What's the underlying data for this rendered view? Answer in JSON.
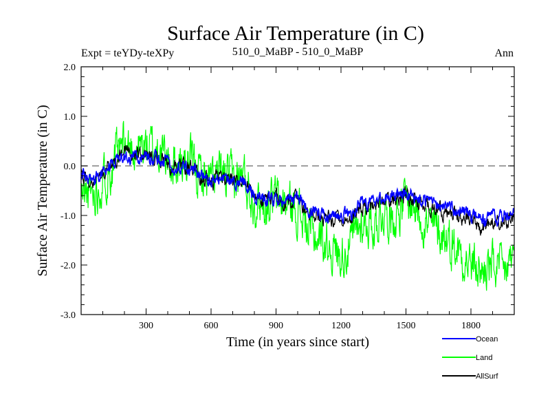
{
  "chart_data": {
    "type": "line",
    "title": "Surface Air Temperature (in C)",
    "subtitle_left": "Expt = teYDy-teXPy",
    "subtitle_center": "510_0_MaBP - 510_0_MaBP",
    "subtitle_right": "Ann",
    "xlabel": "Time (in years since start)",
    "ylabel": "Surface Air Temperature (in C)",
    "xlim": [
      0,
      2000
    ],
    "ylim": [
      -3.0,
      2.0
    ],
    "x_ticks": [
      300,
      600,
      900,
      1200,
      1500,
      1800
    ],
    "x_tick_labels": [
      "300",
      "600",
      "900",
      "1200",
      "1500",
      "1800"
    ],
    "y_ticks": [
      -3.0,
      -2.0,
      -1.0,
      0.0,
      1.0,
      2.0
    ],
    "y_tick_labels": [
      "-3.0",
      "-2.0",
      "-1.0",
      "0.0",
      "1.0",
      "2.0"
    ],
    "reference_line": {
      "y": 0.0,
      "style": "dashed",
      "color": "#808080"
    },
    "series": [
      {
        "name": "Land",
        "color": "#00ff00",
        "x": [
          0,
          50,
          100,
          150,
          200,
          250,
          300,
          350,
          400,
          450,
          500,
          550,
          600,
          650,
          700,
          750,
          800,
          850,
          900,
          950,
          1000,
          1050,
          1100,
          1150,
          1200,
          1250,
          1300,
          1350,
          1400,
          1450,
          1500,
          1550,
          1600,
          1650,
          1700,
          1750,
          1800,
          1850,
          1900,
          1950,
          2000
        ],
        "values": [
          -0.6,
          -0.55,
          -0.3,
          0.1,
          0.4,
          0.35,
          0.4,
          0.35,
          0.1,
          0.0,
          0.05,
          -0.15,
          -0.3,
          -0.2,
          -0.3,
          -0.2,
          -0.7,
          -0.75,
          -0.65,
          -0.8,
          -0.85,
          -1.35,
          -1.45,
          -1.6,
          -1.8,
          -1.55,
          -1.1,
          -1.2,
          -0.9,
          -1.0,
          -0.7,
          -0.85,
          -1.2,
          -1.3,
          -1.5,
          -1.7,
          -2.0,
          -2.15,
          -2.0,
          -2.2,
          -1.8
        ],
        "noise": 0.38
      },
      {
        "name": "AllSurf",
        "color": "#000000",
        "x": [
          0,
          50,
          100,
          150,
          200,
          250,
          300,
          350,
          400,
          450,
          500,
          550,
          600,
          650,
          700,
          750,
          800,
          850,
          900,
          950,
          1000,
          1050,
          1100,
          1150,
          1200,
          1250,
          1300,
          1350,
          1400,
          1450,
          1500,
          1550,
          1600,
          1650,
          1700,
          1750,
          1800,
          1850,
          1900,
          1950,
          2000
        ],
        "values": [
          -0.2,
          -0.35,
          -0.2,
          0.1,
          0.3,
          0.2,
          0.25,
          0.15,
          0.05,
          -0.05,
          -0.05,
          -0.2,
          -0.3,
          -0.25,
          -0.35,
          -0.3,
          -0.65,
          -0.7,
          -0.65,
          -0.8,
          -0.65,
          -1.0,
          -1.05,
          -1.1,
          -1.1,
          -1.05,
          -0.85,
          -0.8,
          -0.7,
          -0.65,
          -0.6,
          -0.75,
          -0.8,
          -0.9,
          -0.95,
          -1.0,
          -1.15,
          -1.25,
          -1.15,
          -1.2,
          -1.0
        ],
        "noise": 0.13
      },
      {
        "name": "Ocean",
        "color": "#0000ff",
        "x": [
          0,
          50,
          100,
          150,
          200,
          250,
          300,
          350,
          400,
          450,
          500,
          550,
          600,
          650,
          700,
          750,
          800,
          850,
          900,
          950,
          1000,
          1050,
          1100,
          1150,
          1200,
          1250,
          1300,
          1350,
          1400,
          1450,
          1500,
          1550,
          1600,
          1650,
          1700,
          1750,
          1800,
          1850,
          1900,
          1950,
          2000
        ],
        "values": [
          -0.15,
          -0.3,
          -0.15,
          0.1,
          0.25,
          0.15,
          0.2,
          0.15,
          0.05,
          -0.05,
          -0.05,
          -0.2,
          -0.3,
          -0.25,
          -0.35,
          -0.3,
          -0.6,
          -0.7,
          -0.65,
          -0.75,
          -0.6,
          -0.9,
          -0.95,
          -1.0,
          -1.0,
          -0.95,
          -0.75,
          -0.7,
          -0.65,
          -0.6,
          -0.55,
          -0.7,
          -0.75,
          -0.8,
          -0.85,
          -0.9,
          -1.0,
          -1.1,
          -1.05,
          -1.05,
          -0.85
        ],
        "noise": 0.11
      }
    ],
    "legend": {
      "placement": "bottom-right",
      "entries": [
        {
          "name": "Ocean",
          "color": "#0000ff"
        },
        {
          "name": "Land",
          "color": "#00ff00"
        },
        {
          "name": "AllSurf",
          "color": "#000000"
        }
      ]
    }
  }
}
